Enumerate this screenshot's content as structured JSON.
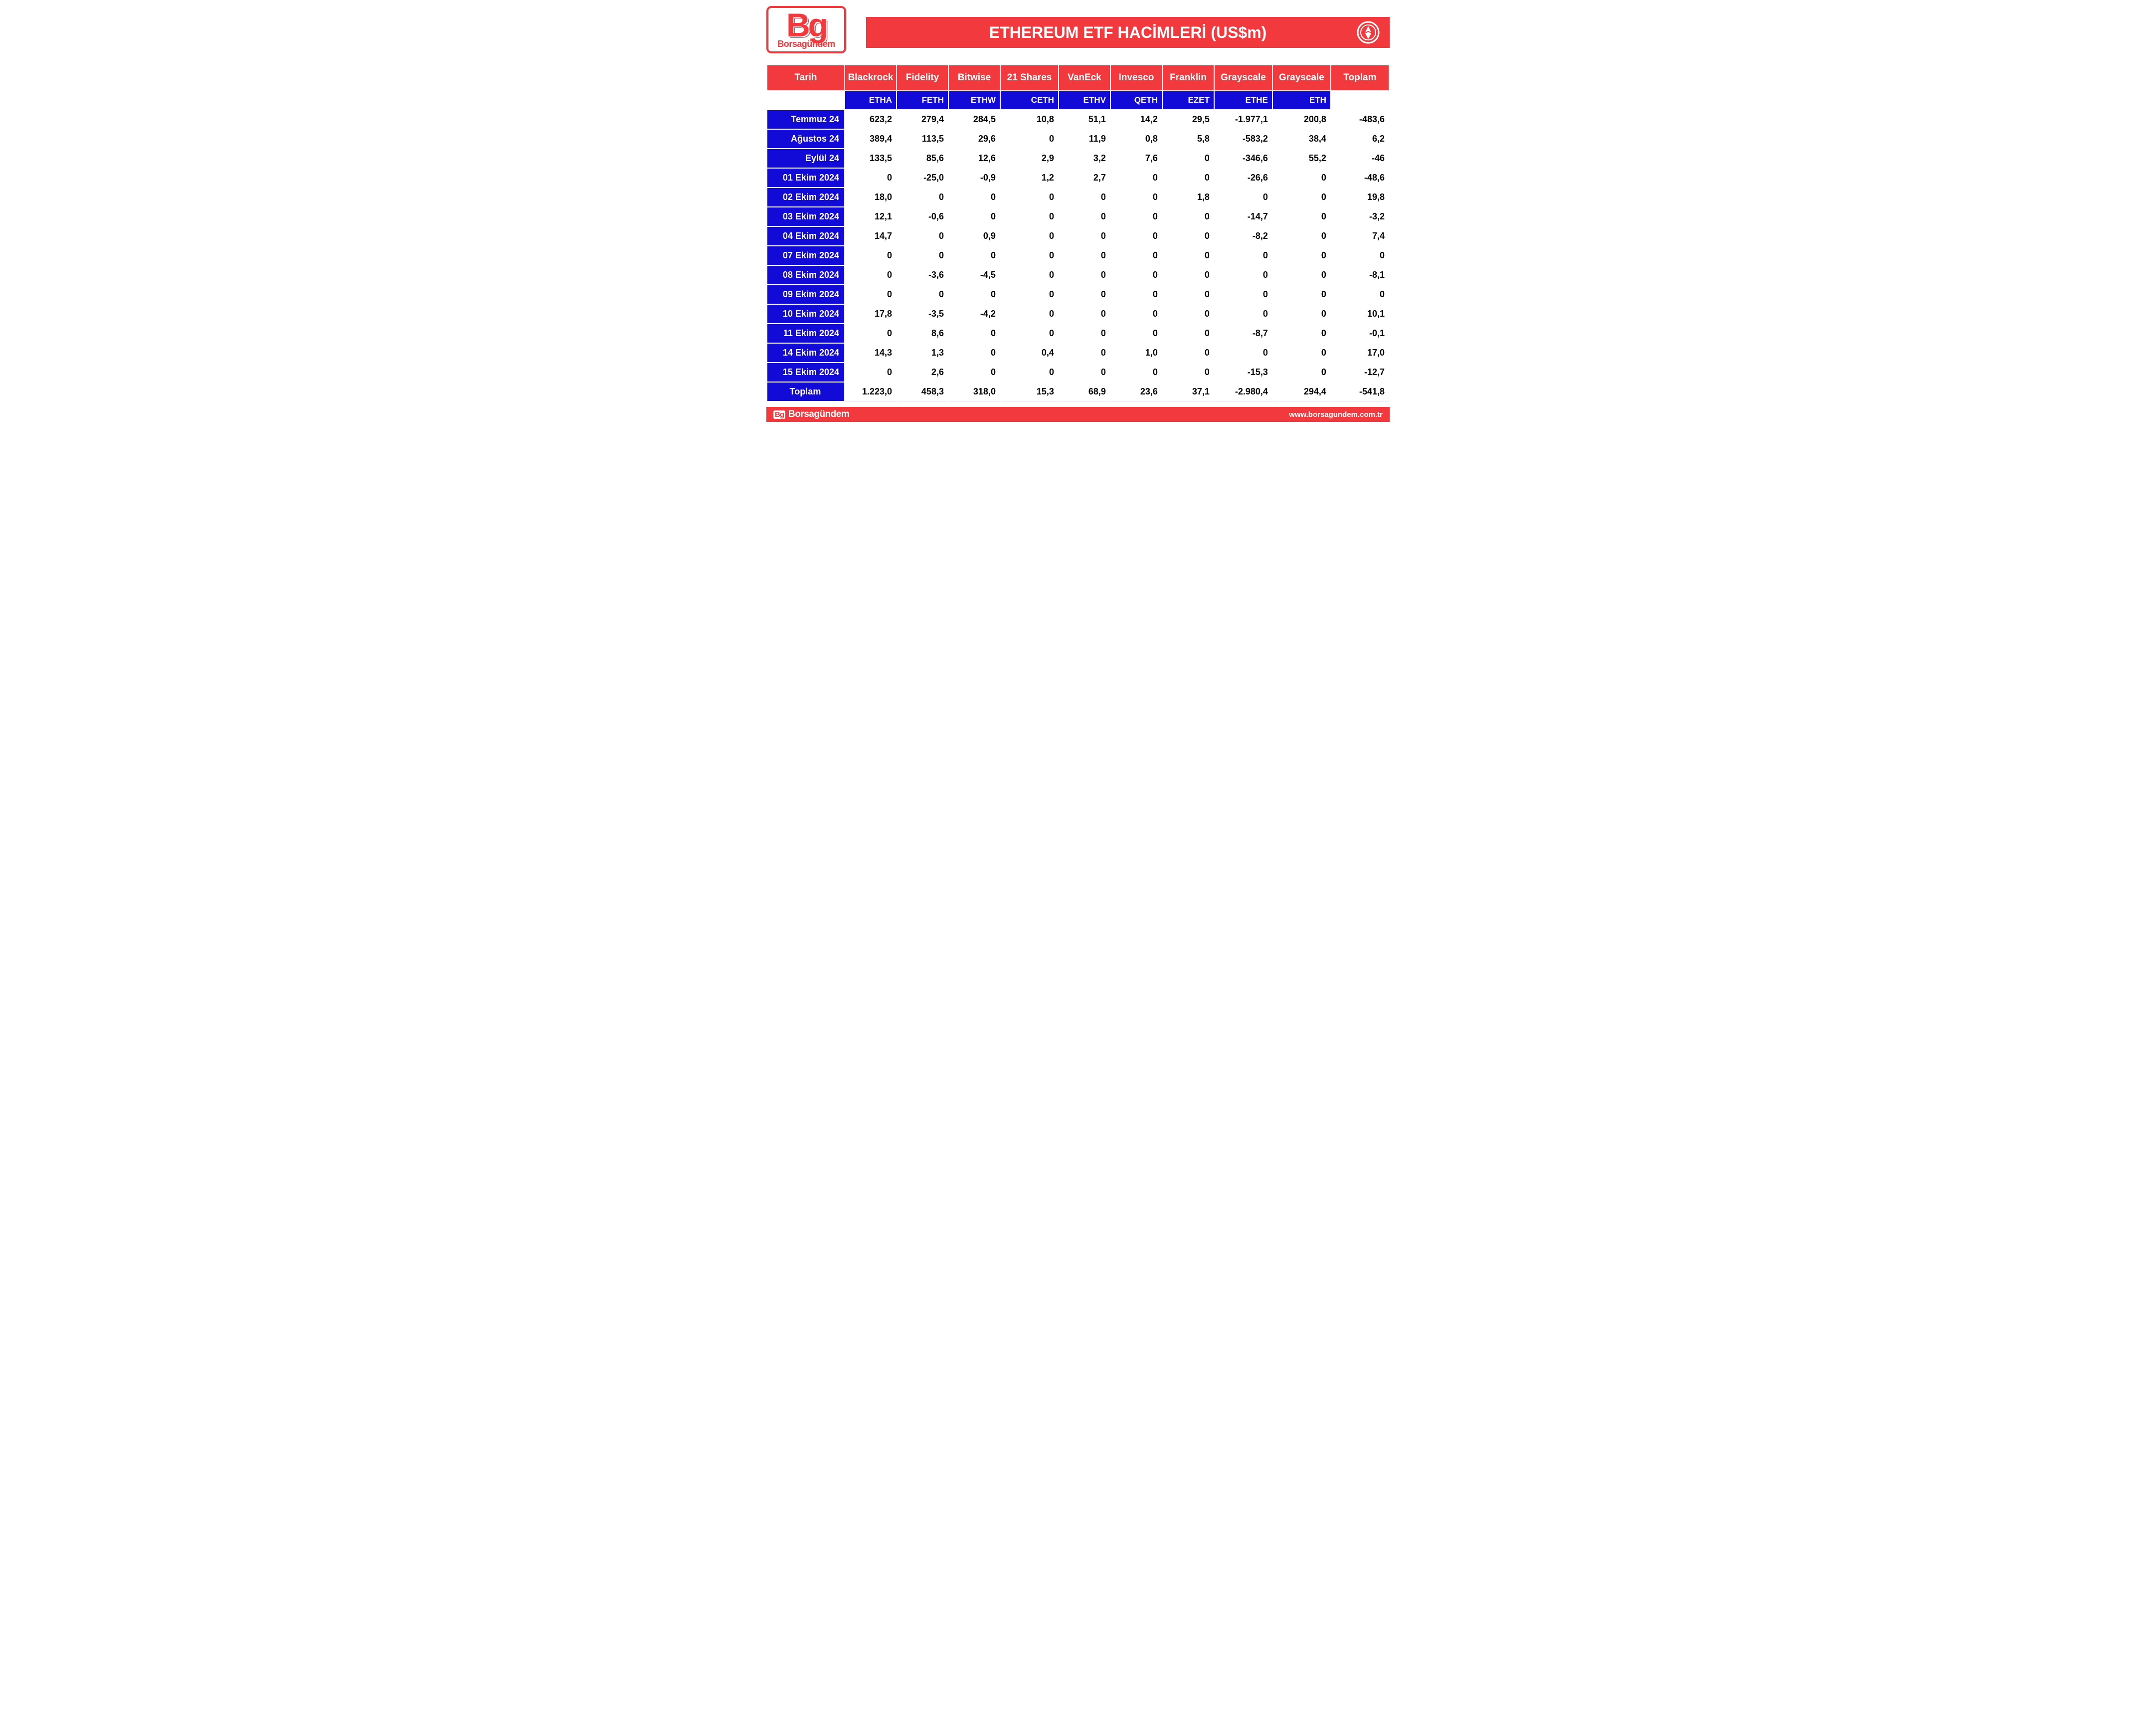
{
  "colors": {
    "brand_red": "#f23a3e",
    "brand_blue": "#120ad6",
    "white": "#ffffff",
    "black": "#000000",
    "row_divider": "#e6e6e6"
  },
  "typography": {
    "title_fontsize": 32,
    "header_fontsize": 19,
    "ticker_fontsize": 17,
    "body_fontsize": 18,
    "body_weight": "700",
    "font_family": "Arial, Helvetica, sans-serif"
  },
  "logo": {
    "big": "Bg",
    "small": "Borsagündem"
  },
  "title": "ETHEREUM ETF HACİMLERİ (US$m)",
  "table": {
    "type": "table",
    "date_header": "Tarih",
    "total_header": "Toplam",
    "total_row_label": "Toplam",
    "providers": [
      "Blackrock",
      "Fidelity",
      "Bitwise",
      "21 Shares",
      "VanEck",
      "Invesco",
      "Franklin",
      "Grayscale",
      "Grayscale"
    ],
    "tickers": [
      "ETHA",
      "FETH",
      "ETHW",
      "CETH",
      "ETHV",
      "QETH",
      "EZET",
      "ETHE",
      "ETH"
    ],
    "dates": [
      "Temmuz 24",
      "Ağustos 24",
      "Eylül 24",
      "01 Ekim 2024",
      "02 Ekim 2024",
      "03 Ekim 2024",
      "04 Ekim 2024",
      "07 Ekim 2024",
      "08 Ekim 2024",
      "09 Ekim 2024",
      "10 Ekim 2024",
      "11 Ekim 2024",
      "14 Ekim 2024",
      "15 Ekim 2024"
    ],
    "values": [
      [
        "623,2",
        "279,4",
        "284,5",
        "10,8",
        "51,1",
        "14,2",
        "29,5",
        "-1.977,1",
        "200,8"
      ],
      [
        "389,4",
        "113,5",
        "29,6",
        "0",
        "11,9",
        "0,8",
        "5,8",
        "-583,2",
        "38,4"
      ],
      [
        "133,5",
        "85,6",
        "12,6",
        "2,9",
        "3,2",
        "7,6",
        "0",
        "-346,6",
        "55,2"
      ],
      [
        "0",
        "-25,0",
        "-0,9",
        "1,2",
        "2,7",
        "0",
        "0",
        "-26,6",
        "0"
      ],
      [
        "18,0",
        "0",
        "0",
        "0",
        "0",
        "0",
        "1,8",
        "0",
        "0"
      ],
      [
        "12,1",
        "-0,6",
        "0",
        "0",
        "0",
        "0",
        "0",
        "-14,7",
        "0"
      ],
      [
        "14,7",
        "0",
        "0,9",
        "0",
        "0",
        "0",
        "0",
        "-8,2",
        "0"
      ],
      [
        "0",
        "0",
        "0",
        "0",
        "0",
        "0",
        "0",
        "0",
        "0"
      ],
      [
        "0",
        "-3,6",
        "-4,5",
        "0",
        "0",
        "0",
        "0",
        "0",
        "0"
      ],
      [
        "0",
        "0",
        "0",
        "0",
        "0",
        "0",
        "0",
        "0",
        "0"
      ],
      [
        "17,8",
        "-3,5",
        "-4,2",
        "0",
        "0",
        "0",
        "0",
        "0",
        "0"
      ],
      [
        "0",
        "8,6",
        "0",
        "0",
        "0",
        "0",
        "0",
        "-8,7",
        "0"
      ],
      [
        "14,3",
        "1,3",
        "0",
        "0,4",
        "0",
        "1,0",
        "0",
        "0",
        "0"
      ],
      [
        "0",
        "2,6",
        "0",
        "0",
        "0",
        "0",
        "0",
        "-15,3",
        "0"
      ]
    ],
    "row_totals": [
      "-483,6",
      "6,2",
      "-46",
      "-48,6",
      "19,8",
      "-3,2",
      "7,4",
      "0",
      "-8,1",
      "0",
      "10,1",
      "-0,1",
      "17,0",
      "-12,7"
    ],
    "col_totals": [
      "1.223,0",
      "458,3",
      "318,0",
      "15,3",
      "68,9",
      "23,6",
      "37,1",
      "-2.980,4",
      "294,4"
    ],
    "grand_total": "-541,8",
    "column_widths_pct": {
      "date": 12,
      "data": 8,
      "shares": 9,
      "gray": 9,
      "total": 9
    },
    "cell_alignment": "right",
    "header_alignment": "center"
  },
  "footer": {
    "logo_tag": "Bg",
    "brand": "Borsagündem",
    "url": "www.borsagundem.com.tr"
  }
}
